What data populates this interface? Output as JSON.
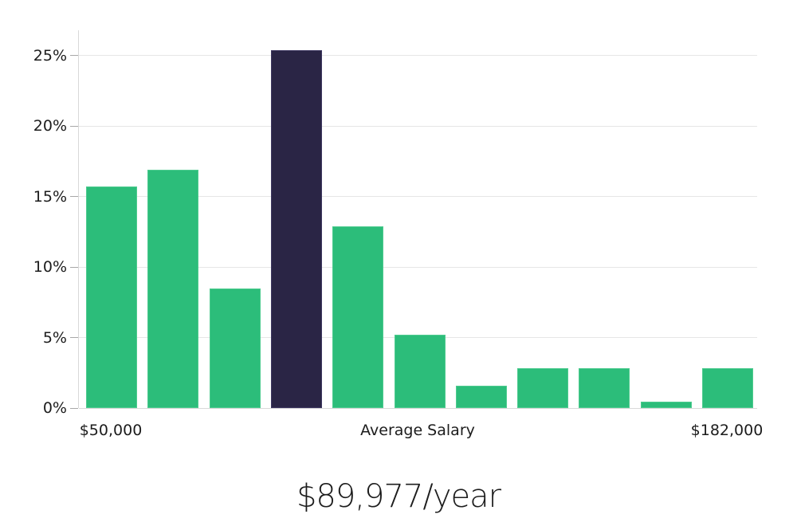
{
  "chart_data": {
    "type": "bar",
    "title": "$89,977/year",
    "description": "Salary distribution histogram; dark bar is the bin containing the average salary",
    "values": [
      15.7,
      16.9,
      8.5,
      25.4,
      12.9,
      5.2,
      1.6,
      2.85,
      2.85,
      0.45,
      2.85
    ],
    "highlight_index": 3,
    "y_axis": {
      "tick_labels": [
        "0%",
        "5%",
        "10%",
        "15%",
        "20%",
        "25%"
      ],
      "tick_values": [
        0,
        5,
        10,
        15,
        20,
        25
      ],
      "max": 26.8
    },
    "x_axis": {
      "labels": [
        {
          "text": "$50,000",
          "position": "left"
        },
        {
          "text": "Average Salary",
          "position": "center"
        },
        {
          "text": "$182,000",
          "position": "right"
        }
      ]
    },
    "colors": {
      "bar": "#2CBD7A",
      "bar_edge": "#4ecb8f",
      "highlight": "#2A2545",
      "highlight_edge": "#3d3760",
      "gridline": "#e6e6e6",
      "baseline": "#d9d9d9",
      "axis": "#d9d9d9",
      "tick": "#a8a8a8",
      "text": "#1c1c1c"
    },
    "grid": true,
    "legend": false
  }
}
